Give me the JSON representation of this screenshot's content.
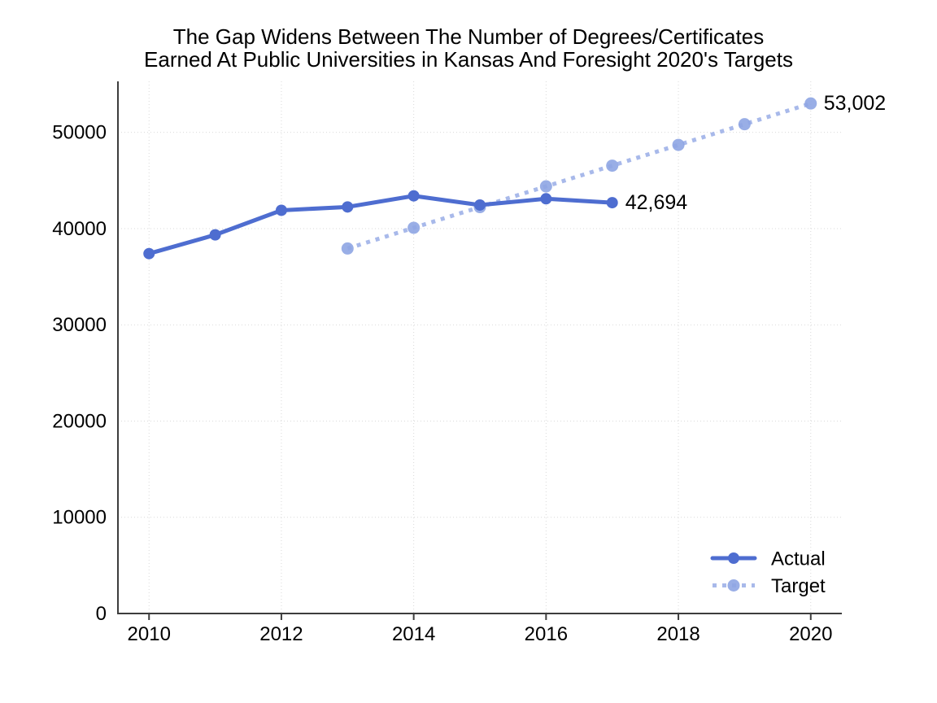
{
  "title": {
    "line1": "The Gap Widens Between The Number of Degrees/Certificates",
    "line2": "Earned At Public Universities in Kansas And Foresight 2020's Targets"
  },
  "chart_data": {
    "type": "line",
    "title": "The Gap Widens Between The Number of Degrees/Certificates Earned At Public Universities in Kansas And Foresight 2020's Targets",
    "xlabel": "",
    "ylabel": "",
    "xlim": [
      2009.53,
      2020.47
    ],
    "ylim": [
      0,
      55300
    ],
    "grid": true,
    "gridline_style": "dotted",
    "legend_position": "lower right",
    "xticks": [
      "2010",
      "2012",
      "2014",
      "2016",
      "2018",
      "2020"
    ],
    "xtick_values": [
      2010,
      2012,
      2014,
      2016,
      2018,
      2020
    ],
    "yticks": [
      "0",
      "10000",
      "20000",
      "30000",
      "40000",
      "50000"
    ],
    "ytick_values": [
      0,
      10000,
      20000,
      30000,
      40000,
      50000
    ],
    "series": [
      {
        "name": "Actual",
        "style": "solid",
        "color": "#4E6DD0",
        "marker_color": "#4E6DD0",
        "x": [
          2010,
          2011,
          2012,
          2013,
          2014,
          2015,
          2016,
          2017
        ],
        "values": [
          37400,
          39350,
          41900,
          42250,
          43400,
          42450,
          43100,
          42694
        ],
        "end_label": "42,694"
      },
      {
        "name": "Target",
        "style": "dotted",
        "color": "#A8B9EA",
        "marker_color": "#8EA5E3",
        "x": [
          2013,
          2014,
          2015,
          2016,
          2017,
          2018,
          2019,
          2020
        ],
        "values": [
          37929,
          40082,
          42235,
          44388,
          46541,
          48695,
          50848,
          53002
        ],
        "end_label": "53,002"
      }
    ],
    "colors": {
      "grid": "#D9D9D9",
      "axis": "#3D3D3D",
      "text": "#000000",
      "background": "#FFFFFF"
    }
  }
}
